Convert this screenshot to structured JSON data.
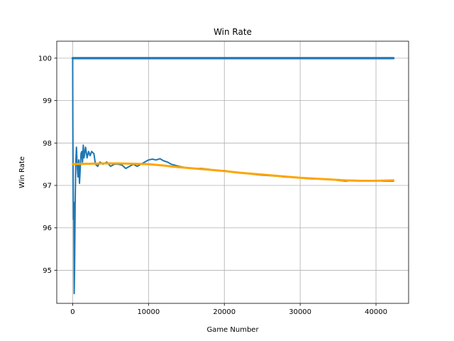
{
  "chart_data": {
    "type": "line",
    "title": "Win Rate",
    "xlabel": "Game Number",
    "ylabel": "Win Rate",
    "xlim": [
      -2100,
      44300
    ],
    "ylim": [
      94.22,
      100.4
    ],
    "x_ticks": [
      0,
      10000,
      20000,
      30000,
      40000
    ],
    "x_tick_labels": [
      "0",
      "10000",
      "20000",
      "30000",
      "40000"
    ],
    "y_ticks": [
      95,
      96,
      97,
      98,
      99,
      100
    ],
    "y_tick_labels": [
      "95",
      "96",
      "97",
      "98",
      "99",
      "100"
    ],
    "grid": true,
    "legend": "none",
    "series": [
      {
        "color": "#1f77b4",
        "style": "line",
        "points": [
          [
            0,
            100
          ],
          [
            42300,
            100
          ]
        ]
      },
      {
        "color": "#1f77b4",
        "style": "line",
        "points": [
          [
            0,
            100
          ],
          [
            20,
            98.5
          ],
          [
            60,
            97.0
          ],
          [
            100,
            96.2
          ],
          [
            150,
            96.6
          ],
          [
            200,
            94.45
          ],
          [
            260,
            95.2
          ],
          [
            330,
            96.6
          ],
          [
            400,
            97.5
          ],
          [
            500,
            97.9
          ],
          [
            600,
            97.45
          ],
          [
            700,
            97.2
          ],
          [
            800,
            97.6
          ],
          [
            900,
            97.05
          ],
          [
            1000,
            97.4
          ],
          [
            1100,
            97.75
          ],
          [
            1200,
            97.8
          ],
          [
            1300,
            97.55
          ],
          [
            1400,
            97.95
          ],
          [
            1500,
            97.65
          ],
          [
            1700,
            97.9
          ],
          [
            1900,
            97.65
          ],
          [
            2100,
            97.8
          ],
          [
            2300,
            97.7
          ],
          [
            2500,
            97.8
          ],
          [
            2800,
            97.75
          ],
          [
            3000,
            97.5
          ],
          [
            3300,
            97.45
          ],
          [
            3600,
            97.55
          ],
          [
            4000,
            97.5
          ],
          [
            4500,
            97.55
          ],
          [
            5000,
            97.45
          ],
          [
            5500,
            97.5
          ],
          [
            6000,
            97.5
          ],
          [
            6500,
            97.48
          ],
          [
            7000,
            97.4
          ],
          [
            7500,
            97.45
          ],
          [
            8000,
            97.5
          ],
          [
            8500,
            97.45
          ],
          [
            9000,
            97.5
          ],
          [
            9500,
            97.55
          ],
          [
            10000,
            97.6
          ],
          [
            10500,
            97.62
          ],
          [
            11000,
            97.6
          ],
          [
            11500,
            97.63
          ],
          [
            12000,
            97.58
          ],
          [
            12500,
            97.55
          ],
          [
            13000,
            97.5
          ],
          [
            14000,
            97.45
          ],
          [
            15000,
            97.42
          ],
          [
            16000,
            97.4
          ],
          [
            17000,
            97.4
          ],
          [
            18000,
            97.38
          ],
          [
            19000,
            97.35
          ],
          [
            20000,
            97.35
          ],
          [
            21000,
            97.32
          ],
          [
            22000,
            97.3
          ],
          [
            23000,
            97.28
          ],
          [
            24000,
            97.26
          ],
          [
            25000,
            97.24
          ],
          [
            26000,
            97.23
          ],
          [
            27000,
            97.22
          ],
          [
            28000,
            97.2
          ],
          [
            29000,
            97.19
          ],
          [
            30000,
            97.18
          ],
          [
            31000,
            97.16
          ],
          [
            32000,
            97.15
          ],
          [
            33000,
            97.15
          ],
          [
            34000,
            97.14
          ],
          [
            35000,
            97.12
          ],
          [
            36000,
            97.1
          ],
          [
            37000,
            97.12
          ],
          [
            38000,
            97.11
          ],
          [
            39000,
            97.1
          ],
          [
            40000,
            97.12
          ],
          [
            41000,
            97.1
          ],
          [
            42300,
            97.1
          ]
        ]
      },
      {
        "color": "#ffa500",
        "style": "line",
        "points": [
          [
            0,
            97.5
          ],
          [
            2000,
            97.51
          ],
          [
            4000,
            97.52
          ],
          [
            6000,
            97.52
          ],
          [
            8000,
            97.51
          ],
          [
            10000,
            97.5
          ],
          [
            12000,
            97.47
          ],
          [
            14000,
            97.43
          ],
          [
            16000,
            97.4
          ],
          [
            18000,
            97.37
          ],
          [
            20000,
            97.34
          ],
          [
            22000,
            97.3
          ],
          [
            24000,
            97.27
          ],
          [
            26000,
            97.24
          ],
          [
            28000,
            97.21
          ],
          [
            30000,
            97.18
          ],
          [
            32000,
            97.16
          ],
          [
            34000,
            97.14
          ],
          [
            36000,
            97.12
          ],
          [
            38000,
            97.11
          ],
          [
            40000,
            97.11
          ],
          [
            42300,
            97.12
          ]
        ]
      }
    ]
  }
}
